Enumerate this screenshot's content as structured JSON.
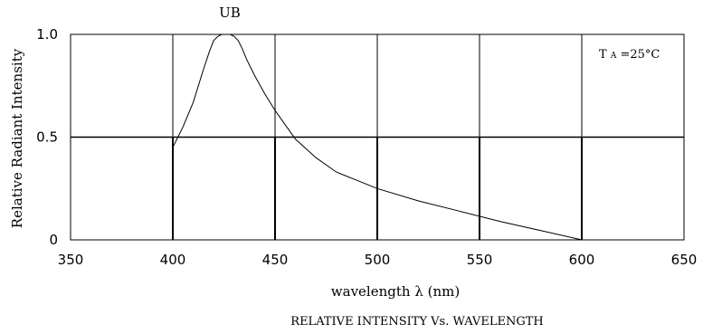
{
  "chart_data": {
    "type": "line",
    "series_label": "UB",
    "xlabel": "wavelength λ (nm)",
    "ylabel": "Relative Radiant Intensity",
    "caption": "RELATIVE INTENSITY Vs. WAVELENGTH",
    "annotation": "TA=25°C",
    "annotation_parts": {
      "t": "T",
      "sub": "A",
      "rest": "=25°C"
    },
    "xlim": [
      350,
      650
    ],
    "ylim": [
      0,
      1.0
    ],
    "x_ticks": [
      350,
      400,
      450,
      500,
      550,
      600,
      650
    ],
    "x_tick_labels": [
      "350",
      "400",
      "450",
      "500",
      "550",
      "600",
      "650"
    ],
    "y_ticks": [
      0,
      0.5,
      1.0
    ],
    "y_tick_labels": [
      "0",
      "0.5",
      "1.0"
    ],
    "grid": true,
    "series": [
      {
        "x": [
          400,
          405,
          410,
          415,
          418,
          420,
          422,
          424,
          426,
          428,
          430,
          432,
          434,
          436,
          440,
          445,
          450,
          455,
          460,
          470,
          480,
          490,
          500,
          520,
          540,
          560,
          580,
          600
        ],
        "y": [
          0.45,
          0.55,
          0.67,
          0.83,
          0.92,
          0.97,
          0.99,
          1.0,
          1.0,
          1.0,
          0.99,
          0.97,
          0.93,
          0.88,
          0.8,
          0.71,
          0.63,
          0.56,
          0.49,
          0.4,
          0.33,
          0.29,
          0.25,
          0.19,
          0.14,
          0.09,
          0.045,
          0.0
        ]
      }
    ]
  }
}
